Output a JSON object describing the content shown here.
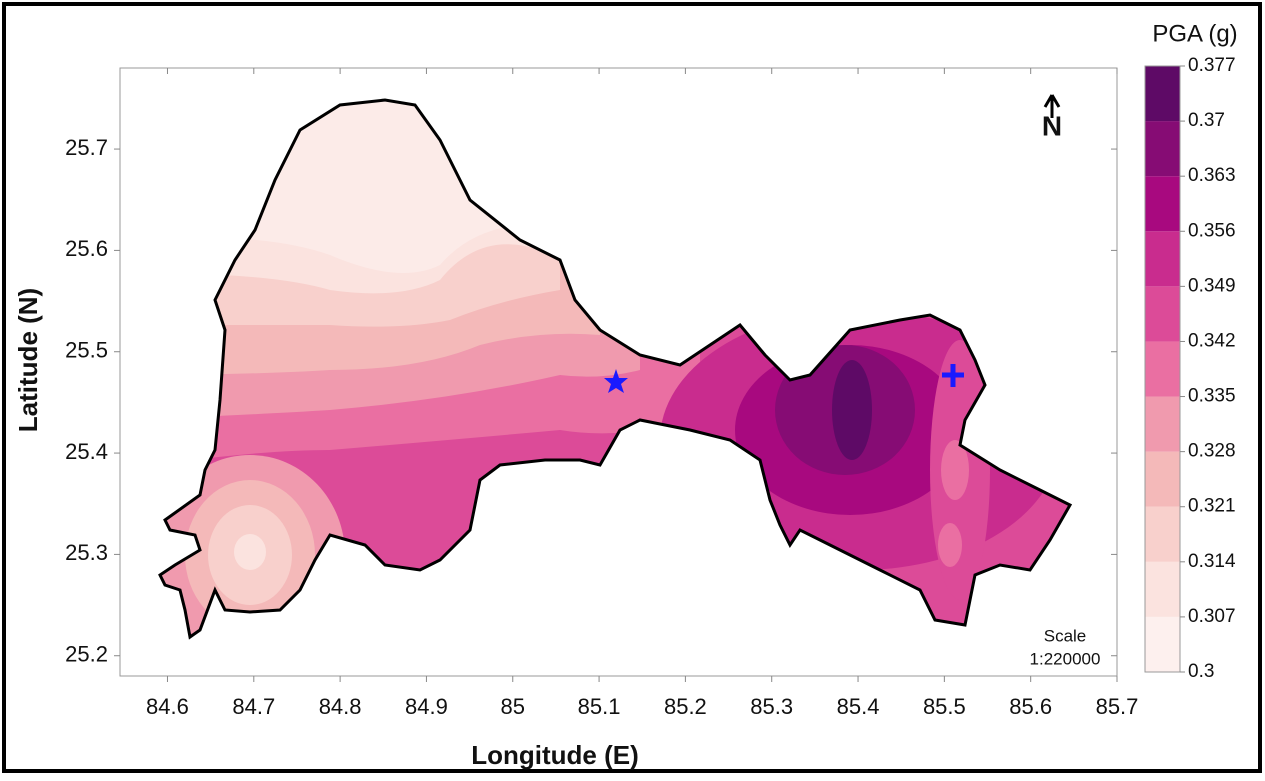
{
  "map": {
    "x_label": "Longitude (E)",
    "y_label": "Latitude (N)",
    "xlim": [
      84.545,
      85.7
    ],
    "ylim": [
      25.18,
      25.78
    ],
    "xticks": [
      84.6,
      84.7,
      84.8,
      84.9,
      85,
      85.1,
      85.2,
      85.3,
      85.4,
      85.5,
      85.6,
      85.7
    ],
    "yticks": [
      25.2,
      25.3,
      25.4,
      25.5,
      25.6,
      25.7
    ],
    "north": "N",
    "scale_label": "Scale",
    "scale_value": "1:220000"
  },
  "colorbar": {
    "title": "PGA (g)",
    "ticks": [
      0.3,
      0.307,
      0.314,
      0.321,
      0.328,
      0.335,
      0.342,
      0.349,
      0.356,
      0.363,
      0.37,
      0.377
    ],
    "colors": [
      "#fdf0ee",
      "#fbe3df",
      "#f8d0cc",
      "#f4b9b9",
      "#f09aae",
      "#ea6fa2",
      "#dc4b98",
      "#c92c8e",
      "#a8097f",
      "#860c74",
      "#5e0a66"
    ]
  }
}
